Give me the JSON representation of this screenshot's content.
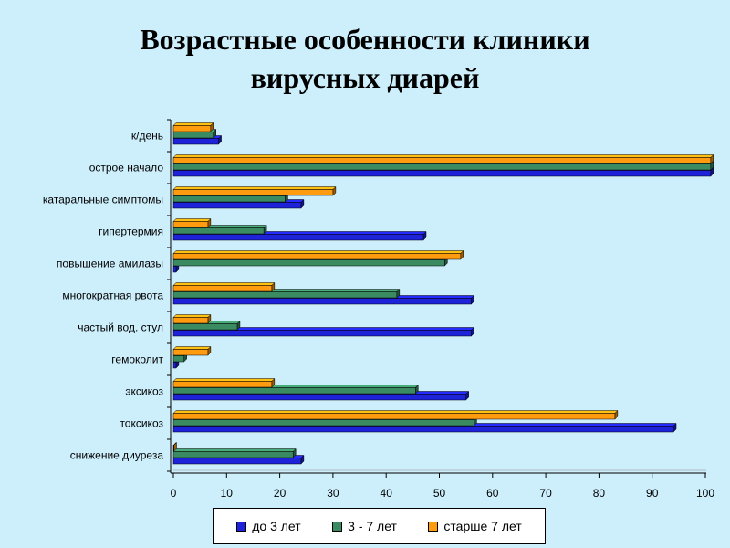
{
  "title": {
    "line1": "Возрастные особенности клиники",
    "line2": "вирусных диарей"
  },
  "chart_data": {
    "type": "bar",
    "orientation": "horizontal",
    "categories": [
      "к/день",
      "острое начало",
      "катаральные симптомы",
      "гипертермия",
      "повышение амилазы",
      "многократная рвота",
      "частый вод. стул",
      "гемоколит",
      "эксикоз",
      "токсикоз",
      "снижение диуреза"
    ],
    "series": [
      {
        "name": "до 3 лет",
        "color": "#1e22d8",
        "values": [
          8.5,
          101,
          24,
          47,
          0.5,
          56,
          56,
          0.5,
          55,
          94,
          24
        ]
      },
      {
        "name": "3 - 7 лет",
        "color": "#3a8a62",
        "values": [
          7.5,
          101,
          21,
          17,
          51,
          42,
          12,
          2,
          45.5,
          56.5,
          22.5
        ]
      },
      {
        "name": "старше 7 лет",
        "color": "#ff9b0f",
        "values": [
          7,
          101,
          30,
          6.5,
          54,
          18.5,
          6.5,
          6.5,
          18.5,
          83,
          0
        ]
      }
    ],
    "xlim": [
      0,
      100
    ],
    "xticks": [
      "0",
      "10",
      "20",
      "30",
      "40",
      "50",
      "60",
      "70",
      "80",
      "90",
      "100"
    ],
    "grid": false,
    "legend_position": "bottom"
  }
}
